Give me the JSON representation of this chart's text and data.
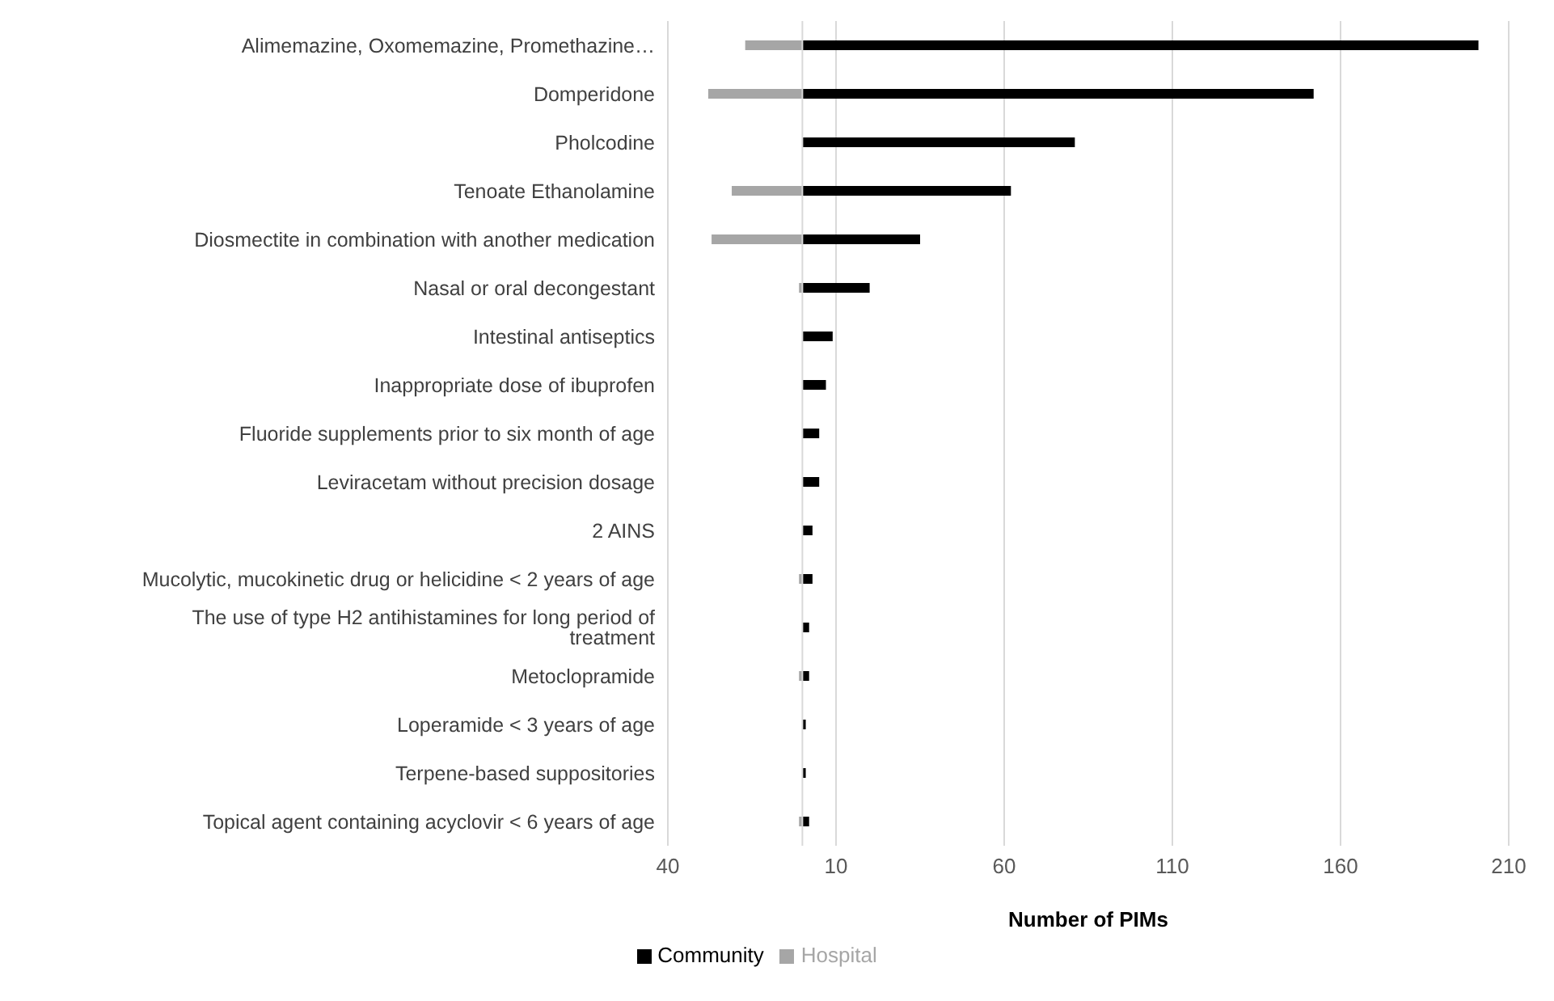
{
  "chart_data": {
    "type": "bar",
    "orientation": "horizontal",
    "stacked": true,
    "xlabel": "Number of PIMs",
    "categories": [
      "Alimemazine, Oxomemazine, Promethazine…",
      "Domperidone",
      "Pholcodine",
      "Tenoate Ethanolamine",
      "Diosmectite in combination with another medication",
      "Nasal or oral decongestant",
      "Intestinal antiseptics",
      "Inappropriate dose of ibuprofen",
      "Fluoride supplements prior to six month of age",
      "Leviracetam without precision dosage",
      "2 AINS",
      "Mucolytic, mucokinetic drug or helicidine < 2 years of age",
      "The use of type H2 antihistamines for long period of treatment",
      "Metoclopramide",
      "Loperamide < 3 years of age",
      "Terpene-based suppositories",
      "Topical agent containing acyclovir < 6 years of age"
    ],
    "series": [
      {
        "name": "Community",
        "color": "#000000",
        "values": [
          201,
          152,
          81,
          62,
          35,
          20,
          9,
          7,
          5,
          5,
          3,
          3,
          2,
          2,
          1,
          1,
          2
        ]
      },
      {
        "name": "Hospital",
        "color": "#a6a6a6",
        "values": [
          -17,
          -28,
          null,
          -21,
          -27,
          -1,
          null,
          null,
          null,
          null,
          null,
          -1,
          null,
          -1,
          null,
          null,
          -1
        ]
      }
    ],
    "xlim": [
      -40,
      210
    ],
    "xticks": [
      {
        "value": -40,
        "label": "40"
      },
      10,
      60,
      110,
      160,
      210
    ],
    "grid": "x",
    "legend": "bottom"
  }
}
